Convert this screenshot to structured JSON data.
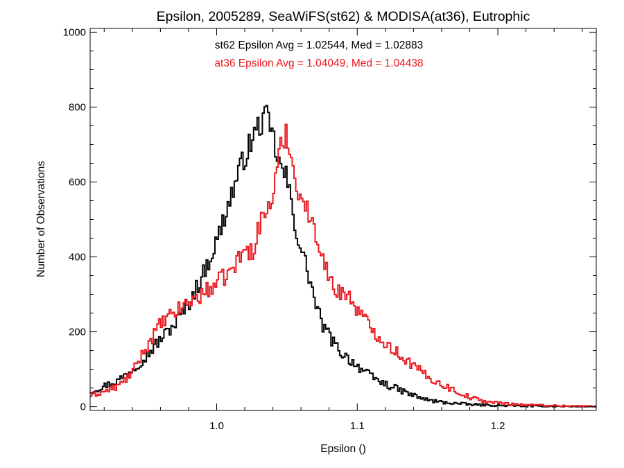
{
  "chart_data": {
    "type": "line",
    "title": "Epsilon, 2005289, SeaWiFS(st62) & MODISA(at36), Eutrophic",
    "xlabel": "Epsilon ()",
    "ylabel": "Number of Observations",
    "xlim": [
      0.91,
      1.27
    ],
    "ylim": [
      -10,
      1010
    ],
    "x_ticks": [
      1.0,
      1.1,
      1.2
    ],
    "x_tick_labels": [
      "1.0",
      "1.1",
      "1.2"
    ],
    "y_ticks": [
      0,
      200,
      400,
      600,
      800,
      1000
    ],
    "y_tick_labels": [
      "0",
      "200",
      "400",
      "600",
      "800",
      "1000"
    ],
    "grid": false,
    "annotations": [
      {
        "text": "st62 Epsilon Avg = 1.02544, Med = 1.02883",
        "color": "#000000"
      },
      {
        "text": "at36 Epsilon Avg = 1.04049, Med = 1.04438",
        "color": "#e8191f"
      }
    ],
    "series": [
      {
        "color": "#000000",
        "points": [
          [
            0.91,
            40
          ],
          [
            0.92,
            55
          ],
          [
            0.93,
            70
          ],
          [
            0.94,
            100
          ],
          [
            0.95,
            135
          ],
          [
            0.96,
            180
          ],
          [
            0.97,
            220
          ],
          [
            0.98,
            275
          ],
          [
            0.99,
            350
          ],
          [
            1.0,
            440
          ],
          [
            1.01,
            560
          ],
          [
            1.02,
            670
          ],
          [
            1.03,
            750
          ],
          [
            1.035,
            775
          ],
          [
            1.04,
            720
          ],
          [
            1.045,
            640
          ],
          [
            1.05,
            610
          ],
          [
            1.055,
            500
          ],
          [
            1.06,
            420
          ],
          [
            1.065,
            360
          ],
          [
            1.07,
            280
          ],
          [
            1.075,
            220
          ],
          [
            1.08,
            190
          ],
          [
            1.085,
            160
          ],
          [
            1.09,
            140
          ],
          [
            1.1,
            110
          ],
          [
            1.11,
            80
          ],
          [
            1.12,
            60
          ],
          [
            1.13,
            45
          ],
          [
            1.14,
            30
          ],
          [
            1.15,
            18
          ],
          [
            1.16,
            12
          ],
          [
            1.18,
            6
          ],
          [
            1.2,
            3
          ],
          [
            1.23,
            1
          ],
          [
            1.27,
            0
          ]
        ]
      },
      {
        "color": "#e8191f",
        "points": [
          [
            0.91,
            30
          ],
          [
            0.92,
            40
          ],
          [
            0.93,
            55
          ],
          [
            0.94,
            90
          ],
          [
            0.95,
            160
          ],
          [
            0.96,
            220
          ],
          [
            0.97,
            250
          ],
          [
            0.98,
            280
          ],
          [
            0.99,
            300
          ],
          [
            1.0,
            330
          ],
          [
            1.01,
            360
          ],
          [
            1.02,
            420
          ],
          [
            1.025,
            410
          ],
          [
            1.03,
            480
          ],
          [
            1.035,
            520
          ],
          [
            1.04,
            560
          ],
          [
            1.045,
            680
          ],
          [
            1.05,
            740
          ],
          [
            1.055,
            620
          ],
          [
            1.06,
            560
          ],
          [
            1.065,
            520
          ],
          [
            1.07,
            460
          ],
          [
            1.075,
            420
          ],
          [
            1.08,
            340
          ],
          [
            1.085,
            305
          ],
          [
            1.09,
            310
          ],
          [
            1.095,
            290
          ],
          [
            1.1,
            260
          ],
          [
            1.11,
            210
          ],
          [
            1.12,
            170
          ],
          [
            1.13,
            140
          ],
          [
            1.14,
            110
          ],
          [
            1.15,
            80
          ],
          [
            1.16,
            60
          ],
          [
            1.17,
            42
          ],
          [
            1.18,
            25
          ],
          [
            1.19,
            15
          ],
          [
            1.2,
            10
          ],
          [
            1.22,
            5
          ],
          [
            1.25,
            2
          ],
          [
            1.27,
            1
          ]
        ]
      }
    ]
  }
}
